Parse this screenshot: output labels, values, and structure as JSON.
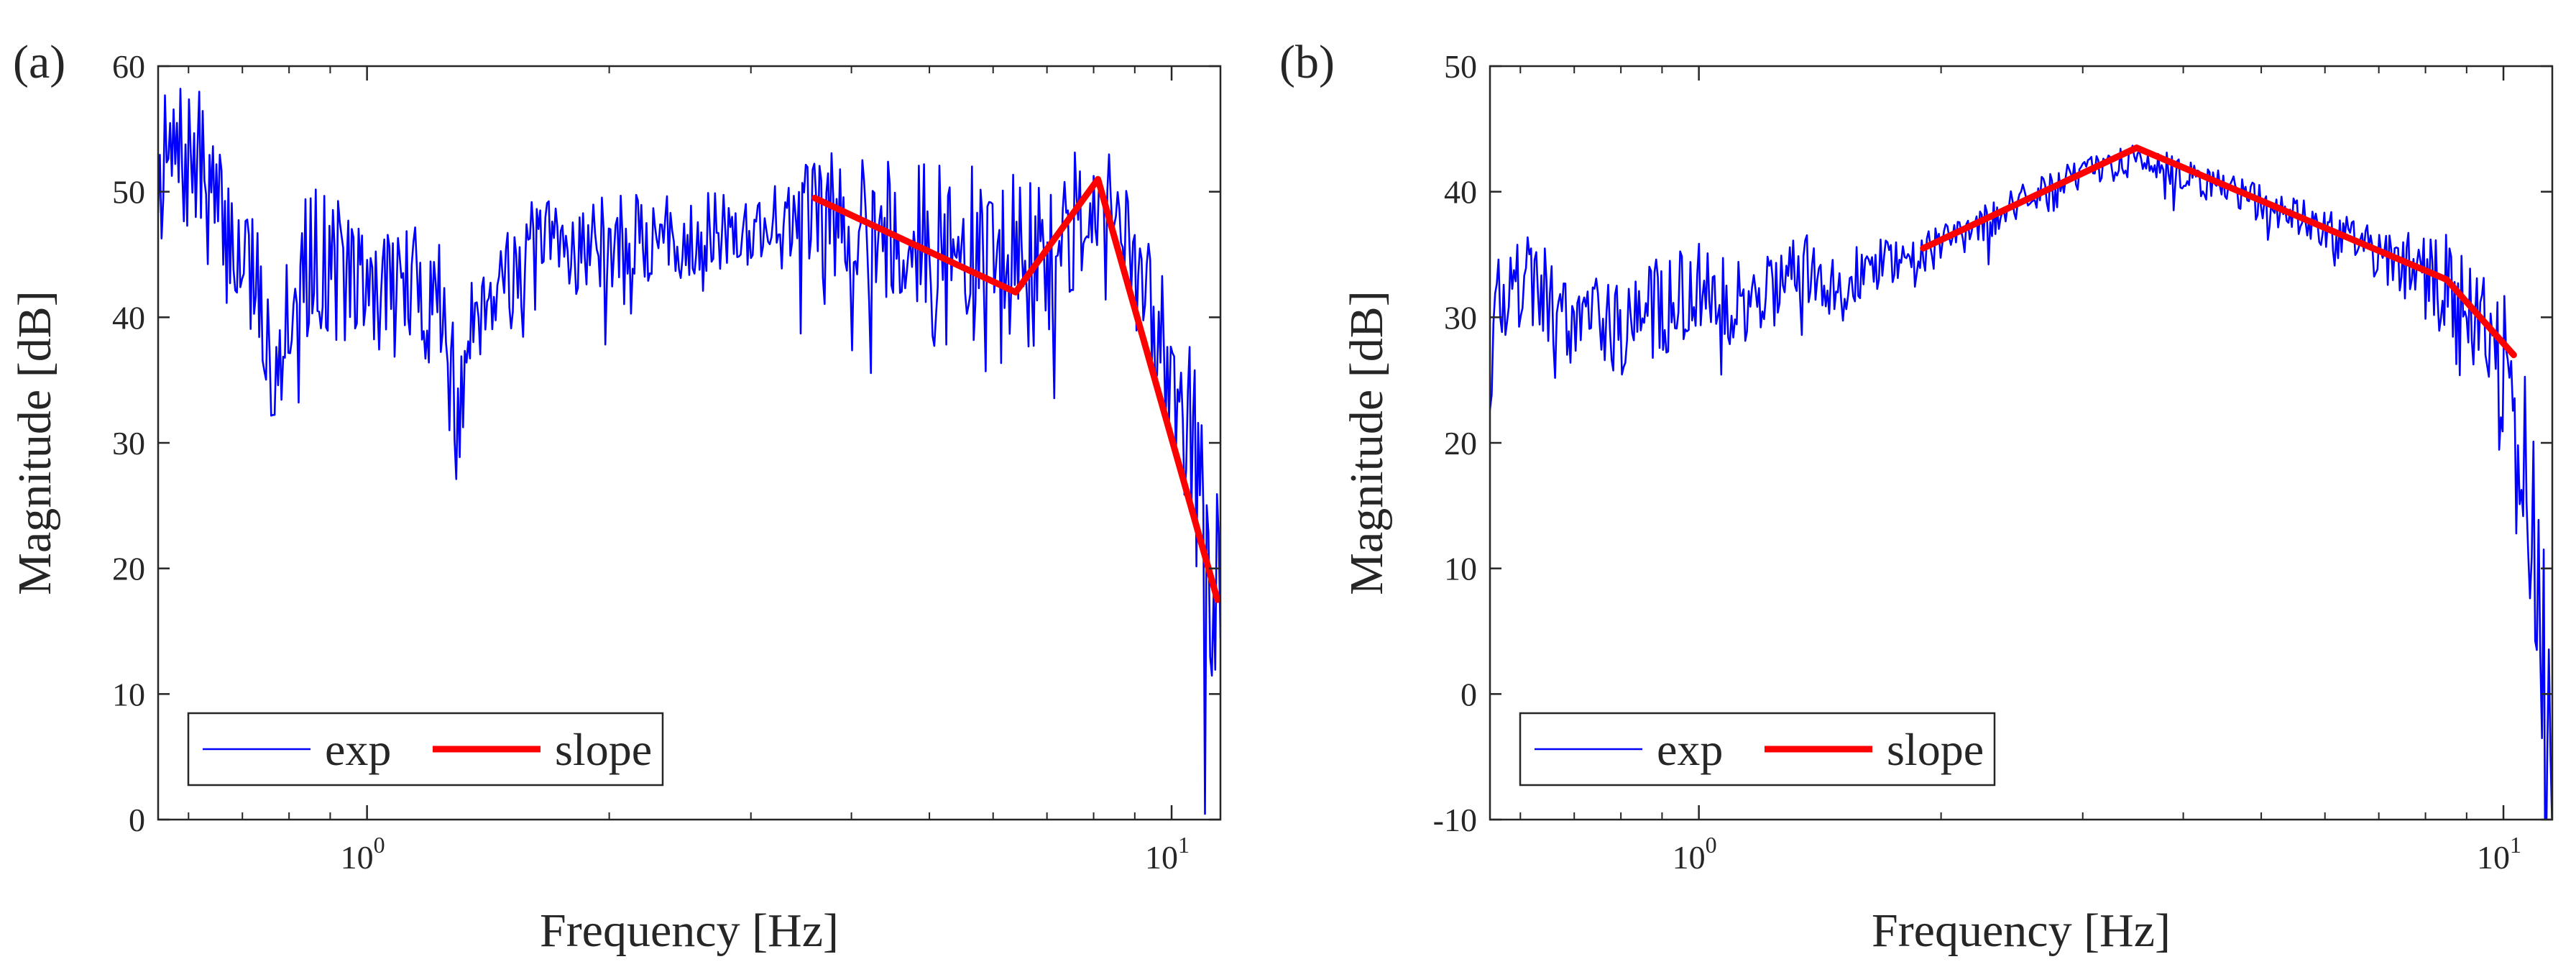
{
  "chart_data": [
    {
      "panel_label": "(a)",
      "type": "line",
      "xscale": "log",
      "xlabel": "Frequency [Hz]",
      "ylabel": "Magnitude [dB]",
      "xlim": [
        0.55,
        11.5
      ],
      "ylim": [
        0,
        60
      ],
      "yticks": [
        0,
        10,
        20,
        30,
        40,
        50,
        60
      ],
      "xticks": [
        {
          "value": 1,
          "base": "10",
          "exp": "0"
        },
        {
          "value": 10,
          "base": "10",
          "exp": "1"
        }
      ],
      "legend": {
        "position": "bottom-left",
        "orientation": "horizontal"
      },
      "series": [
        {
          "name": "exp",
          "color": "#0000ff",
          "style": "noisy",
          "seed": 7,
          "noise_lo": [
            0.55,
            1.0,
            1.8,
            3.0,
            4.5,
            6.0,
            7.5,
            8.2,
            9.0,
            10.0,
            11.0,
            11.5
          ],
          "noise_amp": [
            6,
            6,
            4,
            3,
            7,
            8,
            6,
            4,
            5,
            7,
            9,
            9
          ],
          "base": {
            "x": [
              0.55,
              0.58,
              0.62,
              0.66,
              0.72,
              0.76,
              0.8,
              0.86,
              0.92,
              1.0,
              1.1,
              1.25,
              1.3,
              1.35,
              1.5,
              1.7,
              2.0,
              2.5,
              3.0,
              3.5,
              4.0,
              4.5,
              5.0,
              6.0,
              7.0,
              7.5,
              8.0,
              8.5,
              9.0,
              9.5,
              10.0,
              10.5,
              11.0,
              11.5
            ],
            "y": [
              51.5,
              52.5,
              52.0,
              47.0,
              44.0,
              36.0,
              42.0,
              45.0,
              44.0,
              42.0,
              42.5,
              41.0,
              30.0,
              41.0,
              44.0,
              45.5,
              46.0,
              46.5,
              47.0,
              48.0,
              48.5,
              47.0,
              45.0,
              44.0,
              44.0,
              47.0,
              50.0,
              49.0,
              43.0,
              40.0,
              37.0,
              32.0,
              23.0,
              16.0
            ]
          }
        },
        {
          "name": "slope",
          "color": "#ff0000",
          "style": "thick",
          "x": [
            3.6,
            6.4,
            8.1,
            11.4
          ],
          "y": [
            49.5,
            42.0,
            51.0,
            17.5
          ]
        }
      ]
    },
    {
      "panel_label": "(b)",
      "type": "line",
      "xscale": "log",
      "xlabel": "Frequency [Hz]",
      "ylabel": "Magnitude [dB]",
      "xlim": [
        0.55,
        11.5
      ],
      "ylim": [
        -10,
        50
      ],
      "yticks": [
        -10,
        0,
        10,
        20,
        30,
        40,
        50
      ],
      "xticks": [
        {
          "value": 1,
          "base": "10",
          "exp": "0"
        },
        {
          "value": 10,
          "base": "10",
          "exp": "1"
        }
      ],
      "legend": {
        "position": "bottom-left",
        "orientation": "horizontal"
      },
      "series": [
        {
          "name": "exp",
          "color": "#0000ff",
          "style": "noisy",
          "seed": 19,
          "noise_lo": [
            0.55,
            1.0,
            1.8,
            3.0,
            5.0,
            7.0,
            8.0,
            8.5,
            9.5,
            10.5,
            11.0,
            11.5
          ],
          "noise_amp": [
            4,
            4,
            2,
            1.2,
            1.5,
            2,
            4,
            5,
            6,
            8,
            12,
            12
          ],
          "base": {
            "x": [
              0.55,
              0.6,
              0.65,
              0.7,
              0.75,
              0.8,
              0.85,
              0.9,
              1.0,
              1.1,
              1.2,
              1.3,
              1.4,
              1.5,
              1.6,
              1.8,
              2.0,
              2.5,
              3.0,
              3.5,
              4.0,
              5.0,
              6.0,
              7.0,
              8.0,
              8.5,
              9.0,
              9.5,
              10.0,
              10.5,
              11.0,
              11.5
            ],
            "y": [
              30.0,
              33.0,
              32.0,
              30.0,
              31.0,
              29.0,
              30.0,
              31.0,
              32.0,
              31.0,
              32.0,
              33.0,
              34.0,
              32.0,
              34.0,
              35.0,
              36.0,
              39.0,
              41.5,
              42.5,
              41.5,
              39.0,
              37.0,
              35.0,
              33.5,
              32.0,
              30.0,
              28.0,
              26.0,
              20.0,
              10.0,
              -4.0
            ]
          }
        },
        {
          "name": "slope",
          "color": "#ff0000",
          "style": "thick",
          "x": [
            1.9,
            3.5,
            8.5,
            10.3
          ],
          "y": [
            35.5,
            43.5,
            33.0,
            27.0
          ]
        }
      ]
    }
  ]
}
